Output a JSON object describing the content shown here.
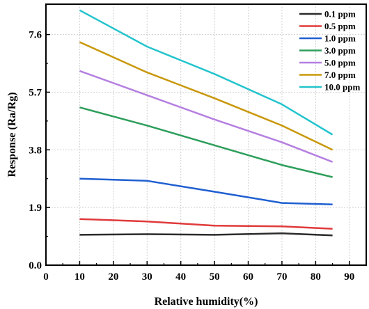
{
  "chart_data": {
    "type": "line",
    "title": "",
    "xlabel": "Relative humidity(%)",
    "ylabel": "Response (Ra/Rg)",
    "xlim": [
      0,
      95
    ],
    "ylim": [
      0,
      8.6
    ],
    "xticks": [
      0,
      10,
      20,
      30,
      40,
      50,
      60,
      70,
      80,
      90
    ],
    "yticks": [
      "0.0",
      "1.9",
      "3.8",
      "5.7",
      "7.6"
    ],
    "grid": true,
    "legend_position": "top-right",
    "x": [
      10,
      30,
      50,
      70,
      85
    ],
    "series": [
      {
        "name": "0.1 ppm",
        "color": "#2b2b2b",
        "values": [
          1.0,
          1.02,
          1.0,
          1.05,
          0.98
        ]
      },
      {
        "name": "0.5 ppm",
        "color": "#e03a3a",
        "values": [
          1.52,
          1.44,
          1.3,
          1.28,
          1.2
        ]
      },
      {
        "name": "1.0 ppm",
        "color": "#1f5fd1",
        "values": [
          2.85,
          2.78,
          2.42,
          2.05,
          2.0
        ]
      },
      {
        "name": "3.0 ppm",
        "color": "#2e9e5b",
        "values": [
          5.2,
          4.6,
          3.95,
          3.3,
          2.9
        ]
      },
      {
        "name": "5.0 ppm",
        "color": "#b57fe0",
        "values": [
          6.4,
          5.6,
          4.8,
          4.05,
          3.4
        ]
      },
      {
        "name": "7.0 ppm",
        "color": "#c9980a",
        "values": [
          7.35,
          6.35,
          5.5,
          4.6,
          3.8
        ]
      },
      {
        "name": "10.0 ppm",
        "color": "#24c4cc",
        "values": [
          8.4,
          7.2,
          6.3,
          5.3,
          4.3
        ]
      }
    ]
  }
}
